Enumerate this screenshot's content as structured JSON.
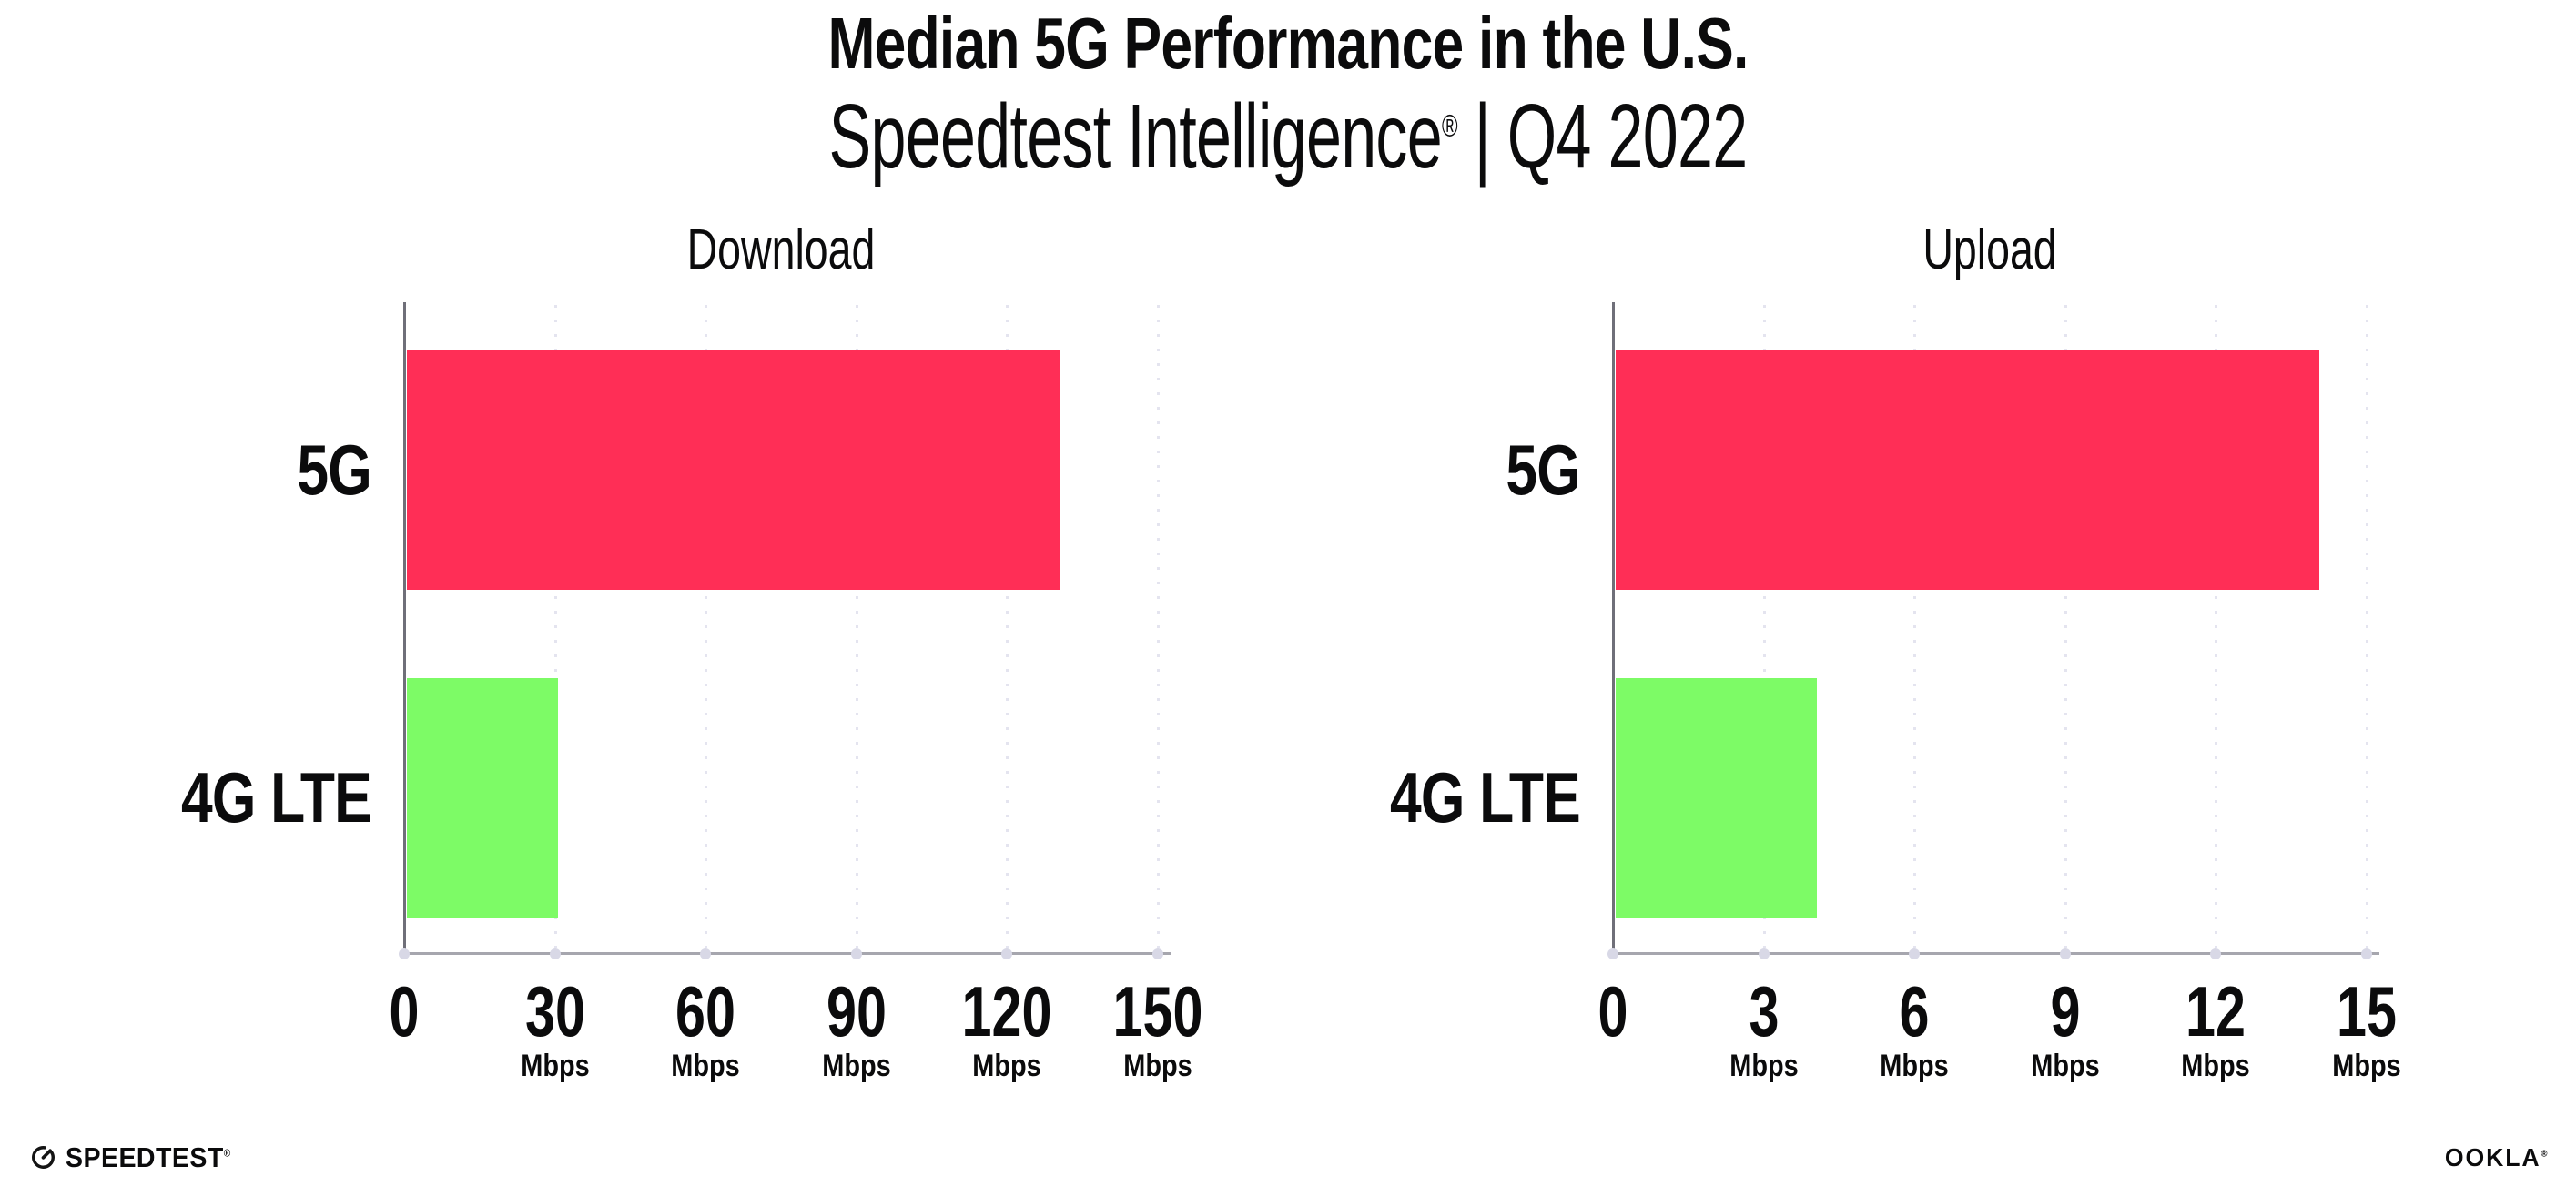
{
  "header": {
    "title": "Median 5G Performance in the U.S.",
    "subtitle_brand": "Speedtest Intelligence",
    "subtitle_registered": "®",
    "subtitle_rest": " | Q4 2022"
  },
  "chart_data": [
    {
      "type": "bar",
      "orientation": "horizontal",
      "title": "Download",
      "categories": [
        "5G",
        "4G LTE"
      ],
      "values": [
        130,
        30
      ],
      "unit": "Mbps",
      "xlim": [
        0,
        150
      ],
      "xticks": [
        0,
        30,
        60,
        90,
        120,
        150
      ],
      "bar_colors": [
        "#FF2E56",
        "#7DFB66"
      ],
      "grid": "dotted-vertical",
      "legend": "none"
    },
    {
      "type": "bar",
      "orientation": "horizontal",
      "title": "Upload",
      "categories": [
        "5G",
        "4G LTE"
      ],
      "values": [
        14,
        4
      ],
      "unit": "Mbps",
      "xlim": [
        0,
        15
      ],
      "xticks": [
        0,
        3,
        6,
        9,
        12,
        15
      ],
      "bar_colors": [
        "#FF2E56",
        "#7DFB66"
      ],
      "grid": "dotted-vertical",
      "legend": "none"
    }
  ],
  "footer": {
    "speedtest_logo": "SPEEDTEST",
    "speedtest_mark": "®",
    "ookla_logo": "OOKLA",
    "ookla_mark": "®"
  },
  "colors": {
    "bar_5g": "#FF2E56",
    "bar_4g_lte": "#7DFB66",
    "grid": "#E4E4EF",
    "axis_y": "#6F6F79",
    "axis_x": "#A6A6AE",
    "tick_dot": "#D8D8E6",
    "text": "#0B0B0C"
  }
}
